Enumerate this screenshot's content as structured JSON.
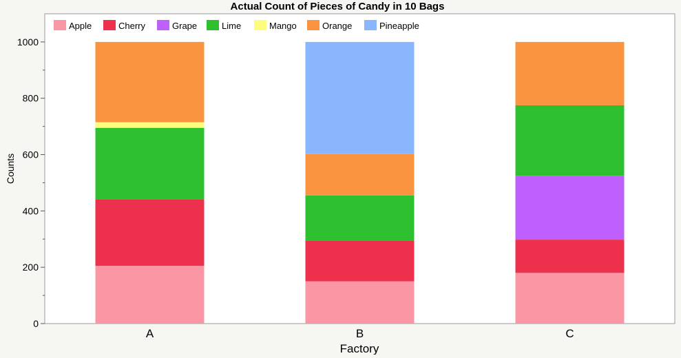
{
  "chart_data": {
    "type": "bar",
    "stacked": true,
    "title": "Actual Count of Pieces of Candy in 10 Bags",
    "xlabel": "Factory",
    "ylabel": "Counts",
    "ylim": [
      0,
      1100
    ],
    "y_ticks": [
      0,
      200,
      400,
      600,
      800,
      1000
    ],
    "categories": [
      "A",
      "B",
      "C"
    ],
    "legend_position": "top-left",
    "grid": false,
    "series": [
      {
        "name": "Apple",
        "color": "#fb97a5",
        "values": [
          205,
          150,
          180
        ]
      },
      {
        "name": "Cherry",
        "color": "#ed304c",
        "values": [
          235,
          145,
          118
        ]
      },
      {
        "name": "Grape",
        "color": "#bf60fc",
        "values": [
          0,
          0,
          227
        ]
      },
      {
        "name": "Lime",
        "color": "#2ec02f",
        "values": [
          255,
          160,
          250
        ]
      },
      {
        "name": "Mango",
        "color": "#fdfc7d",
        "values": [
          20,
          0,
          0
        ]
      },
      {
        "name": "Orange",
        "color": "#fb9440",
        "values": [
          285,
          147,
          225
        ]
      },
      {
        "name": "Pineapple",
        "color": "#89b6fc",
        "values": [
          0,
          398,
          0
        ]
      }
    ]
  }
}
